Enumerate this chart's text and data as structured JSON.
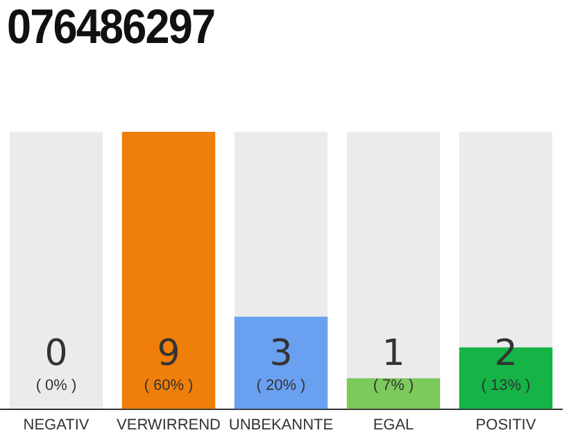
{
  "chart_data": {
    "type": "bar",
    "title": "076486297",
    "categories": [
      "NEGATIV",
      "VERWIRREND",
      "UNBEKANNTE",
      "EGAL",
      "POSITIV"
    ],
    "values": [
      0,
      9,
      3,
      1,
      2
    ],
    "colors": [
      "#ebebeb",
      "#f07f0a",
      "#6aa0f0",
      "#7cc95c",
      "#14b446"
    ],
    "value_labels": [
      "0\n( 0% )",
      "9\n( 60% )",
      "3\n( 20% )",
      "1\n( 7% )",
      "2\n( 13% )"
    ],
    "grid": false,
    "legend": false
  }
}
